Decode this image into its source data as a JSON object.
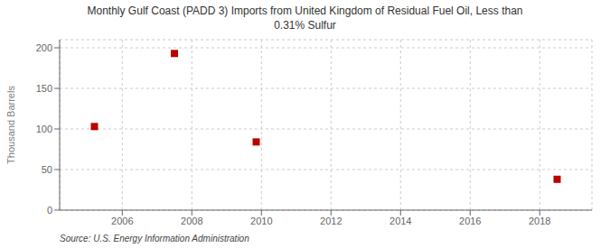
{
  "chart_data": {
    "type": "scatter",
    "title": "Monthly Gulf Coast (PADD 3) Imports from United Kingdom of Residual Fuel Oil, Less than\n0.31% Sulfur",
    "ylabel": "Thousand Barrels",
    "annotations": [
      "Source: U.S. Energy Information Administration"
    ],
    "x": [
      2007.5,
      2005.2,
      2009.85,
      2018.5
    ],
    "values": [
      193,
      103,
      84,
      38
    ],
    "color": "#bb0000",
    "marker": "square",
    "xlim": [
      2004.2,
      2019.5
    ],
    "xticks": [
      2006,
      2008,
      2010,
      2012,
      2014,
      2016,
      2018
    ],
    "ylim": [
      0,
      210
    ],
    "yticks": [
      0,
      50,
      100,
      150,
      200
    ],
    "grid": true
  }
}
